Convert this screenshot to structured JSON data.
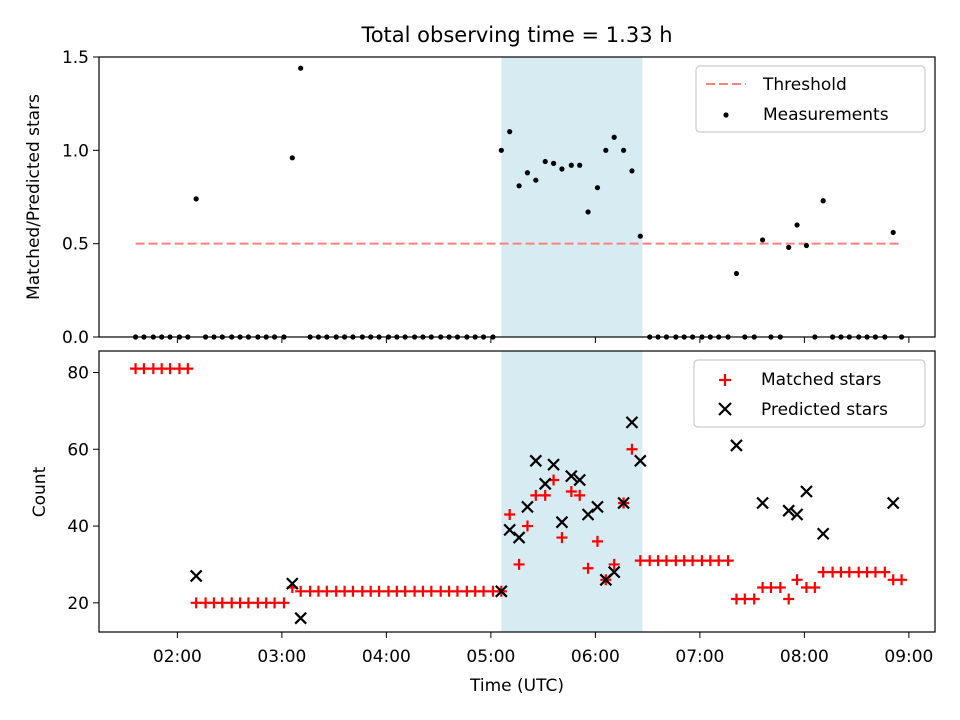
{
  "chart_data": [
    {
      "type": "scatter",
      "title": "Total observing time = 1.33 h",
      "ylabel": "Matched/Predicted stars",
      "ylim": [
        0,
        1.5
      ],
      "yticks": [
        0.0,
        0.5,
        1.0,
        1.5
      ],
      "ytick_labels": [
        "0.0",
        "0.5",
        "1.0",
        "1.5"
      ],
      "grid": false,
      "legend": {
        "position": "top-right",
        "entries": [
          "Threshold",
          "Measurements"
        ]
      },
      "highlight_span": {
        "x_start": 5.1,
        "x_end": 6.45,
        "color": "#add8e6"
      },
      "threshold": {
        "name": "Threshold",
        "y": 0.5,
        "x_start": 1.6,
        "x_end": 8.92,
        "color": "#ff7f7f",
        "style": "dashed"
      },
      "series": [
        {
          "name": "Measurements",
          "marker": "dot",
          "color": "#000000",
          "x": [
            1.6,
            1.68,
            1.77,
            1.85,
            1.93,
            2.02,
            2.1,
            2.18,
            2.27,
            2.35,
            2.43,
            2.52,
            2.6,
            2.68,
            2.77,
            2.85,
            2.93,
            3.02,
            3.1,
            3.18,
            3.27,
            3.35,
            3.43,
            3.52,
            3.6,
            3.68,
            3.77,
            3.85,
            3.93,
            4.02,
            4.1,
            4.18,
            4.27,
            4.35,
            4.43,
            4.52,
            4.6,
            4.68,
            4.77,
            4.85,
            4.93,
            5.02,
            5.1,
            5.18,
            5.27,
            5.35,
            5.43,
            5.52,
            5.6,
            5.68,
            5.77,
            5.85,
            5.93,
            6.02,
            6.1,
            6.18,
            6.27,
            6.35,
            6.43,
            6.52,
            6.6,
            6.68,
            6.77,
            6.85,
            6.93,
            7.02,
            7.1,
            7.18,
            7.27,
            7.35,
            7.43,
            7.52,
            7.6,
            7.68,
            7.77,
            7.85,
            7.93,
            8.02,
            8.1,
            8.18,
            8.27,
            8.35,
            8.43,
            8.52,
            8.6,
            8.68,
            8.77,
            8.85,
            8.93
          ],
          "y": [
            0,
            0,
            0,
            0,
            0,
            0,
            0,
            0.74,
            0,
            0,
            0,
            0,
            0,
            0,
            0,
            0,
            0,
            0,
            0.96,
            1.44,
            0,
            0,
            0,
            0,
            0,
            0,
            0,
            0,
            0,
            0,
            0,
            0,
            0,
            0,
            0,
            0,
            0,
            0,
            0,
            0,
            0,
            0,
            1.0,
            1.1,
            0.81,
            0.88,
            0.84,
            0.94,
            0.93,
            0.9,
            0.92,
            0.92,
            0.67,
            0.8,
            1.0,
            1.07,
            1.0,
            0.89,
            0.54,
            0,
            0,
            0,
            0,
            0,
            0,
            0,
            0,
            0,
            0,
            0.34,
            0,
            0,
            0.52,
            0,
            0,
            0.48,
            0.6,
            0.49,
            0,
            0.73,
            0,
            0,
            0,
            0,
            0,
            0,
            0,
            0.56,
            0
          ]
        }
      ]
    },
    {
      "type": "scatter",
      "xlabel": "Time (UTC)",
      "ylabel": "Count",
      "ylim": [
        12.4,
        85.6
      ],
      "yticks": [
        20,
        40,
        60,
        80
      ],
      "ytick_labels": [
        "20",
        "40",
        "60",
        "80"
      ],
      "xlim": [
        1.25,
        9.25
      ],
      "xticks": [
        2,
        3,
        4,
        5,
        6,
        7,
        8,
        9
      ],
      "xtick_labels": [
        "02:00",
        "03:00",
        "04:00",
        "05:00",
        "06:00",
        "07:00",
        "08:00",
        "09:00"
      ],
      "grid": false,
      "legend": {
        "position": "top-right",
        "entries": [
          "Matched stars",
          "Predicted stars"
        ]
      },
      "highlight_span": {
        "x_start": 5.1,
        "x_end": 6.45,
        "color": "#add8e6"
      },
      "series": [
        {
          "name": "Matched stars",
          "marker": "plus",
          "color": "#ff0000",
          "x": [
            1.6,
            1.68,
            1.77,
            1.85,
            1.93,
            2.02,
            2.1,
            2.18,
            2.27,
            2.35,
            2.43,
            2.52,
            2.6,
            2.68,
            2.77,
            2.85,
            2.93,
            3.02,
            3.1,
            3.18,
            3.27,
            3.35,
            3.43,
            3.52,
            3.6,
            3.68,
            3.77,
            3.85,
            3.93,
            4.02,
            4.1,
            4.18,
            4.27,
            4.35,
            4.43,
            4.52,
            4.6,
            4.68,
            4.77,
            4.85,
            4.93,
            5.02,
            5.1,
            5.18,
            5.27,
            5.35,
            5.43,
            5.52,
            5.6,
            5.68,
            5.77,
            5.85,
            5.93,
            6.02,
            6.1,
            6.18,
            6.27,
            6.35,
            6.43,
            6.52,
            6.6,
            6.68,
            6.77,
            6.85,
            6.93,
            7.02,
            7.1,
            7.18,
            7.27,
            7.35,
            7.43,
            7.52,
            7.6,
            7.68,
            7.77,
            7.85,
            7.93,
            8.02,
            8.1,
            8.18,
            8.27,
            8.35,
            8.43,
            8.52,
            8.6,
            8.68,
            8.77,
            8.85,
            8.93
          ],
          "y": [
            81,
            81,
            81,
            81,
            81,
            81,
            81,
            20,
            20,
            20,
            20,
            20,
            20,
            20,
            20,
            20,
            20,
            20,
            24,
            23,
            23,
            23,
            23,
            23,
            23,
            23,
            23,
            23,
            23,
            23,
            23,
            23,
            23,
            23,
            23,
            23,
            23,
            23,
            23,
            23,
            23,
            23,
            23,
            43,
            30,
            40,
            48,
            48,
            52,
            37,
            49,
            48,
            29,
            36,
            26,
            30,
            46,
            60,
            31,
            31,
            31,
            31,
            31,
            31,
            31,
            31,
            31,
            31,
            31,
            21,
            21,
            21,
            24,
            24,
            24,
            21,
            26,
            24,
            24,
            28,
            28,
            28,
            28,
            28,
            28,
            28,
            28,
            26,
            26
          ]
        },
        {
          "name": "Predicted stars",
          "marker": "x",
          "color": "#000000",
          "x": [
            2.18,
            3.1,
            3.18,
            5.1,
            5.18,
            5.27,
            5.35,
            5.43,
            5.52,
            5.6,
            5.68,
            5.77,
            5.85,
            5.93,
            6.02,
            6.1,
            6.18,
            6.27,
            6.35,
            6.43,
            7.35,
            7.6,
            7.85,
            7.93,
            8.02,
            8.18,
            8.85
          ],
          "y": [
            27,
            25,
            16,
            23,
            39,
            37,
            45,
            57,
            51,
            56,
            41,
            53,
            52,
            43,
            45,
            26,
            28,
            46,
            67,
            57,
            61,
            46,
            44,
            43,
            49,
            38,
            46
          ]
        }
      ]
    }
  ]
}
